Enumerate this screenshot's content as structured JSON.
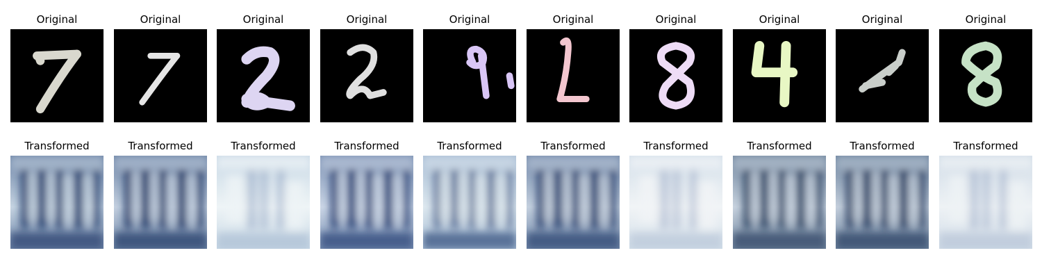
{
  "figure": {
    "rows": [
      {
        "name": "original",
        "title": "Original",
        "panels": [
          {
            "digit": "7",
            "stroke_color": "#d9d8ce",
            "background": "#000000"
          },
          {
            "digit": "7",
            "stroke_color": "#e6e6e6",
            "background": "#000000"
          },
          {
            "digit": "2",
            "stroke_color": "#ddd5f2",
            "background": "#000000"
          },
          {
            "digit": "2",
            "stroke_color": "#e0e0e0",
            "background": "#000000"
          },
          {
            "digit": "9",
            "stroke_color": "#d9c6f6",
            "background": "#000000"
          },
          {
            "digit": "2",
            "stroke_color": "#f3c6cf",
            "background": "#000000"
          },
          {
            "digit": "8",
            "stroke_color": "#eedcf6",
            "background": "#000000"
          },
          {
            "digit": "4",
            "stroke_color": "#e8f7c4",
            "background": "#000000"
          },
          {
            "digit": "4",
            "stroke_color": "#c9ceca",
            "background": "#000000"
          },
          {
            "digit": "8",
            "stroke_color": "#c6e2c6",
            "background": "#000000"
          }
        ]
      },
      {
        "name": "transformed",
        "title": "Transformed",
        "panels": [
          {
            "style": "dark-blue-arches",
            "base_color": "#6f86a8",
            "accent_color": "#263f6e",
            "light_color": "#c6d4e2"
          },
          {
            "style": "dark-blue-arches",
            "base_color": "#6e85a6",
            "accent_color": "#243c6a",
            "light_color": "#c3d0e0"
          },
          {
            "style": "pale-washed",
            "base_color": "#c9d9e6",
            "accent_color": "#6d86b0",
            "light_color": "#eef4f6"
          },
          {
            "style": "dark-blue-arches",
            "base_color": "#7c92b4",
            "accent_color": "#2a4376",
            "light_color": "#cbd6e6"
          },
          {
            "style": "light-blue-arches",
            "base_color": "#a8bdd4",
            "accent_color": "#35507e",
            "light_color": "#dde8ef"
          },
          {
            "style": "dark-blue-arches",
            "base_color": "#7389aa",
            "accent_color": "#2b4270",
            "light_color": "#c5d1df"
          },
          {
            "style": "pale-washed",
            "base_color": "#d4e0ea",
            "accent_color": "#8093b8",
            "light_color": "#f1f4f6"
          },
          {
            "style": "dark-blue-arches",
            "base_color": "#72879f",
            "accent_color": "#2f4464",
            "light_color": "#c7d2de"
          },
          {
            "style": "dark-blue-arches",
            "base_color": "#6e849f",
            "accent_color": "#283e63",
            "light_color": "#c4cfdc"
          },
          {
            "style": "pale-washed",
            "base_color": "#d2dde8",
            "accent_color": "#7f93b6",
            "light_color": "#eef2f5"
          }
        ]
      }
    ]
  }
}
